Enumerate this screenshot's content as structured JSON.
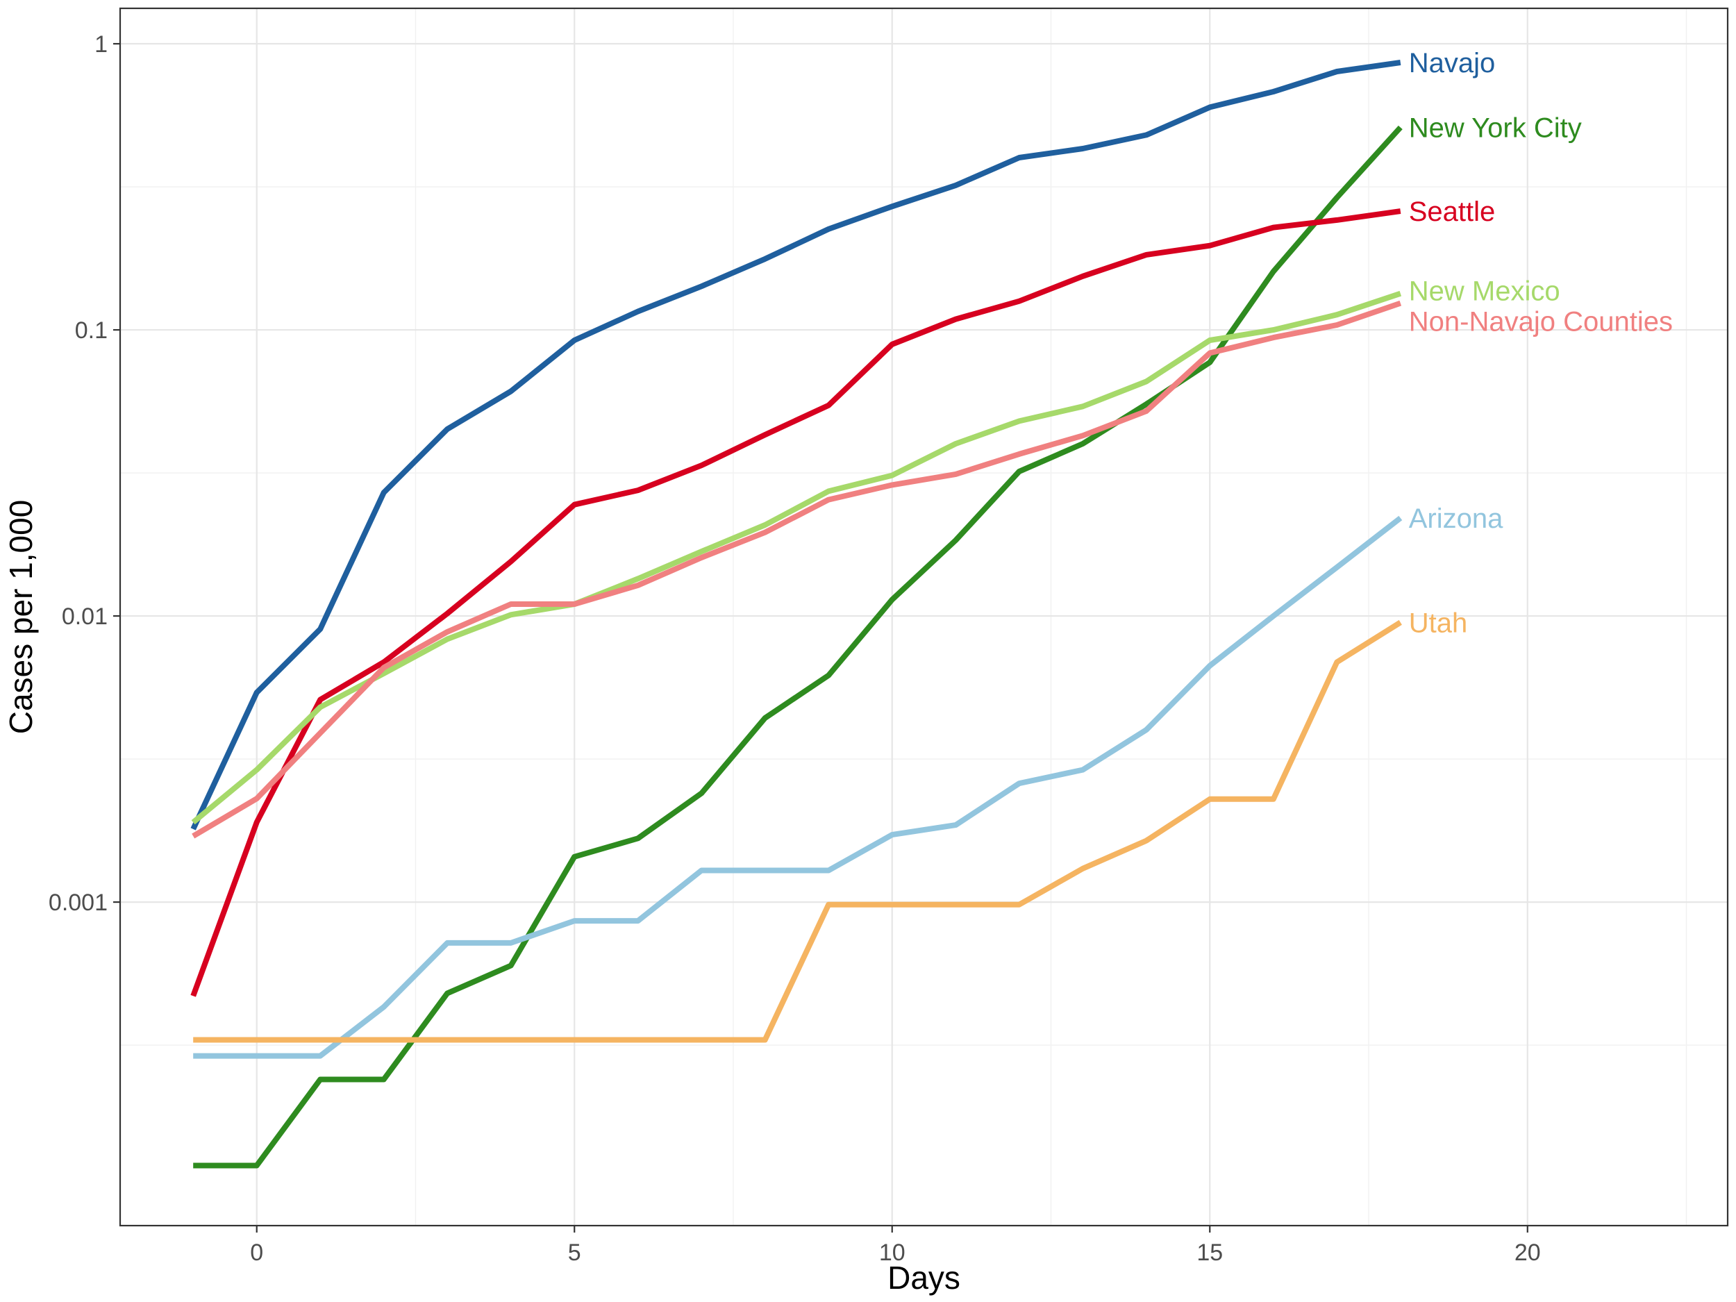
{
  "chart_data": {
    "type": "line",
    "xlabel": "Days",
    "ylabel": "Cases per 1,000",
    "y_scale": "log10",
    "xlim": [
      -2.15,
      23.15
    ],
    "ylim": [
      7.4e-05,
      1.33
    ],
    "x_ticks": [
      0,
      5,
      10,
      15,
      20
    ],
    "x_tick_labels": [
      "0",
      "5",
      "10",
      "15",
      "20"
    ],
    "y_ticks": [
      0.001,
      0.01,
      0.1,
      1
    ],
    "y_tick_labels": [
      "0.001",
      "0.01",
      "0.1",
      "1"
    ],
    "grid": true,
    "legend": "direct labels at line ends",
    "x": [
      -1,
      0,
      1,
      2,
      3,
      4,
      5,
      6,
      7,
      8,
      9,
      10,
      11,
      12,
      13,
      14,
      15,
      16,
      17,
      18
    ],
    "series": [
      {
        "name": "Navajo",
        "color": "#1f5f9e",
        "values": [
          0.0018,
          0.0054,
          0.009,
          0.027,
          0.045,
          0.061,
          0.092,
          0.116,
          0.142,
          0.177,
          0.225,
          0.27,
          0.32,
          0.4,
          0.43,
          0.48,
          0.6,
          0.68,
          0.8,
          0.86
        ]
      },
      {
        "name": "New York City",
        "color": "#2e8b1f",
        "values": [
          0.00012,
          0.00012,
          0.00024,
          0.00024,
          0.00048,
          0.0006,
          0.00144,
          0.00167,
          0.0024,
          0.0044,
          0.0062,
          0.0114,
          0.0184,
          0.032,
          0.04,
          0.055,
          0.077,
          0.16,
          0.29,
          0.51
        ]
      },
      {
        "name": "Seattle",
        "color": "#d7001f",
        "values": [
          0.00047,
          0.0019,
          0.0051,
          0.0069,
          0.0102,
          0.0155,
          0.0245,
          0.0275,
          0.0336,
          0.043,
          0.0545,
          0.089,
          0.109,
          0.126,
          0.154,
          0.183,
          0.197,
          0.228,
          0.242,
          0.26
        ]
      },
      {
        "name": "New Mexico",
        "color": "#a6d96a",
        "values": [
          0.0019,
          0.0029,
          0.0048,
          0.0063,
          0.0083,
          0.0101,
          0.011,
          0.0135,
          0.0168,
          0.0208,
          0.0273,
          0.031,
          0.04,
          0.048,
          0.054,
          0.066,
          0.092,
          0.1,
          0.113,
          0.134
        ]
      },
      {
        "name": "Non-Navajo Counties",
        "color": "#f08080",
        "values": [
          0.0017,
          0.0023,
          0.0039,
          0.0066,
          0.0088,
          0.011,
          0.011,
          0.0128,
          0.016,
          0.0196,
          0.0255,
          0.0287,
          0.0313,
          0.0368,
          0.0427,
          0.052,
          0.083,
          0.094,
          0.104,
          0.124
        ]
      },
      {
        "name": "Arizona",
        "color": "#92c5de",
        "values": [
          0.00029,
          0.00029,
          0.00029,
          0.00043,
          0.00072,
          0.00072,
          0.00086,
          0.00086,
          0.00129,
          0.00129,
          0.00129,
          0.00172,
          0.00186,
          0.0026,
          0.0029,
          0.004,
          0.0067,
          0.01,
          0.0148,
          0.022
        ]
      },
      {
        "name": "Utah",
        "color": "#f5b461",
        "values": [
          0.00033,
          0.00033,
          0.00033,
          0.00033,
          0.00033,
          0.00033,
          0.00033,
          0.00033,
          0.00033,
          0.00033,
          0.00098,
          0.00098,
          0.00098,
          0.00098,
          0.00131,
          0.00164,
          0.00229,
          0.00229,
          0.0069,
          0.0095
        ]
      }
    ]
  }
}
